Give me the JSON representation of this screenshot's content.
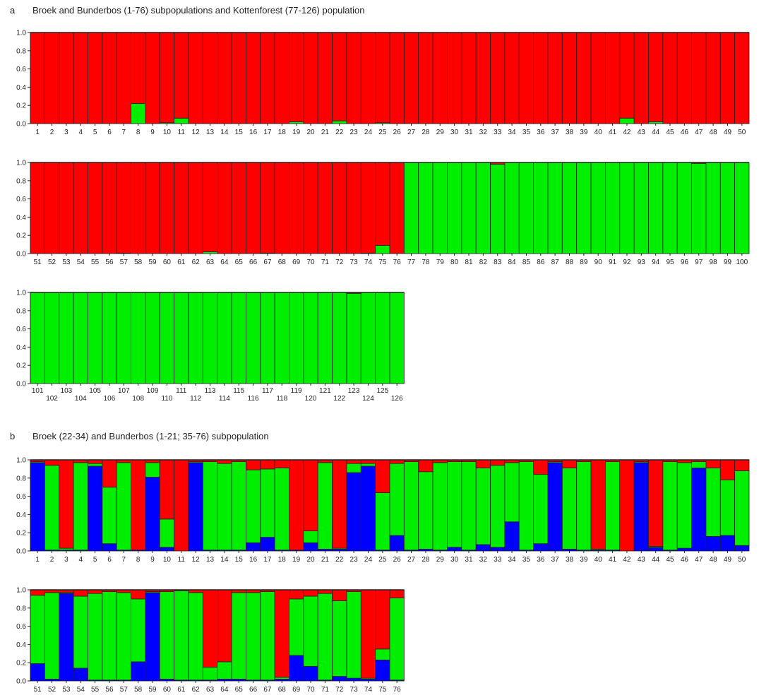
{
  "panels": [
    {
      "letter": "a",
      "title": "Broek and Bunderbos (1-76) subpopulations and Kottenforest (77-126) population"
    },
    {
      "letter": "b",
      "title": "Broek (22-34) and Bunderbos (1-21; 35-76) subpopulation"
    }
  ],
  "colors": {
    "red": "#ff0000",
    "green": "#00ee00",
    "blue": "#0000ff"
  },
  "chart_data": [
    {
      "type": "bar",
      "stacked": true,
      "panel": "a",
      "title": "Broek and Bunderbos (1-76) subpopulations and Kottenforest (77-126) population",
      "ylim": [
        0,
        1
      ],
      "yticks": [
        "0.0",
        "0.2",
        "0.4",
        "0.6",
        "0.8",
        "1.0"
      ],
      "stack_order": [
        "green",
        "red"
      ],
      "individuals": "1-126",
      "green": [
        0,
        0,
        0,
        0,
        0,
        0,
        0,
        0.22,
        0,
        0.01,
        0.06,
        0,
        0,
        0,
        0,
        0,
        0,
        0,
        0.02,
        0,
        0,
        0.03,
        0,
        0,
        0.01,
        0,
        0,
        0,
        0,
        0,
        0,
        0,
        0,
        0,
        0,
        0,
        0,
        0,
        0,
        0,
        0,
        0.06,
        0,
        0.02,
        0,
        0,
        0,
        0,
        0,
        0,
        0,
        0,
        0,
        0,
        0,
        0,
        0.005,
        0,
        0,
        0,
        0,
        0,
        0.02,
        0,
        0,
        0,
        0.005,
        0,
        0,
        0,
        0,
        0,
        0,
        0.005,
        0.09,
        0,
        1,
        1,
        1,
        1,
        1,
        1,
        0.98,
        1,
        1,
        1,
        1,
        1,
        1,
        1,
        1,
        1,
        1,
        1,
        1,
        1,
        0.99,
        1,
        1,
        1,
        1,
        1,
        1,
        1,
        1,
        1,
        1,
        1,
        1,
        1,
        1,
        1,
        1,
        1,
        1,
        1,
        1,
        1,
        1,
        1,
        1,
        1,
        0.99,
        1,
        1,
        1
      ]
    },
    {
      "type": "bar",
      "stacked": true,
      "panel": "b",
      "title": "Broek (22-34) and Bunderbos (1-21; 35-76) subpopulation",
      "ylim": [
        0,
        1
      ],
      "yticks": [
        "0.0",
        "0.2",
        "0.4",
        "0.6",
        "0.8",
        "1.0"
      ],
      "stack_order": [
        "blue",
        "green",
        "red"
      ],
      "individuals": "1-76",
      "blue": [
        0.97,
        0.01,
        0.01,
        0.01,
        0.93,
        0.08,
        0.01,
        0.01,
        0.81,
        0.04,
        0,
        0.97,
        0.01,
        0.01,
        0.01,
        0.09,
        0.15,
        0.01,
        0.01,
        0.09,
        0.02,
        0.02,
        0.86,
        0.93,
        0.01,
        0.17,
        0.01,
        0.02,
        0.01,
        0.04,
        0.01,
        0.07,
        0.04,
        0.32,
        0.01,
        0.08,
        0.97,
        0.02,
        0.01,
        0.01,
        0.01,
        0,
        0.97,
        0.04,
        0.01,
        0.03,
        0.91,
        0.16,
        0.17,
        0.06,
        0.19,
        0.02,
        0.96,
        0.14,
        0.01,
        0.01,
        0.01,
        0.21,
        0.97,
        0.02,
        0.01,
        0.01,
        0.01,
        0.02,
        0.02,
        0.01,
        0.01,
        0.02,
        0.28,
        0.16,
        0.01,
        0.05,
        0.03,
        0.02,
        0.23,
        0.01
      ],
      "green": [
        0.01,
        0.93,
        0.02,
        0.96,
        0.03,
        0.62,
        0.96,
        0,
        0.16,
        0.31,
        0,
        0.01,
        0.97,
        0.95,
        0.97,
        0.8,
        0.75,
        0.9,
        0,
        0.13,
        0.95,
        0.01,
        0.1,
        0.03,
        0.63,
        0.79,
        0.97,
        0.85,
        0.96,
        0.94,
        0.97,
        0.84,
        0.9,
        0.65,
        0.97,
        0.76,
        0.01,
        0.89,
        0.97,
        0.01,
        0.97,
        0,
        0.01,
        0.01,
        0.97,
        0.94,
        0.07,
        0.75,
        0.61,
        0.82,
        0.75,
        0.95,
        0.01,
        0.79,
        0.95,
        0.97,
        0.96,
        0.69,
        0.01,
        0.96,
        0.98,
        0.96,
        0.14,
        0.19,
        0.95,
        0.96,
        0.97,
        0.02,
        0.62,
        0.77,
        0.95,
        0.83,
        0.95,
        0.01,
        0.12,
        0.9
      ]
    }
  ]
}
